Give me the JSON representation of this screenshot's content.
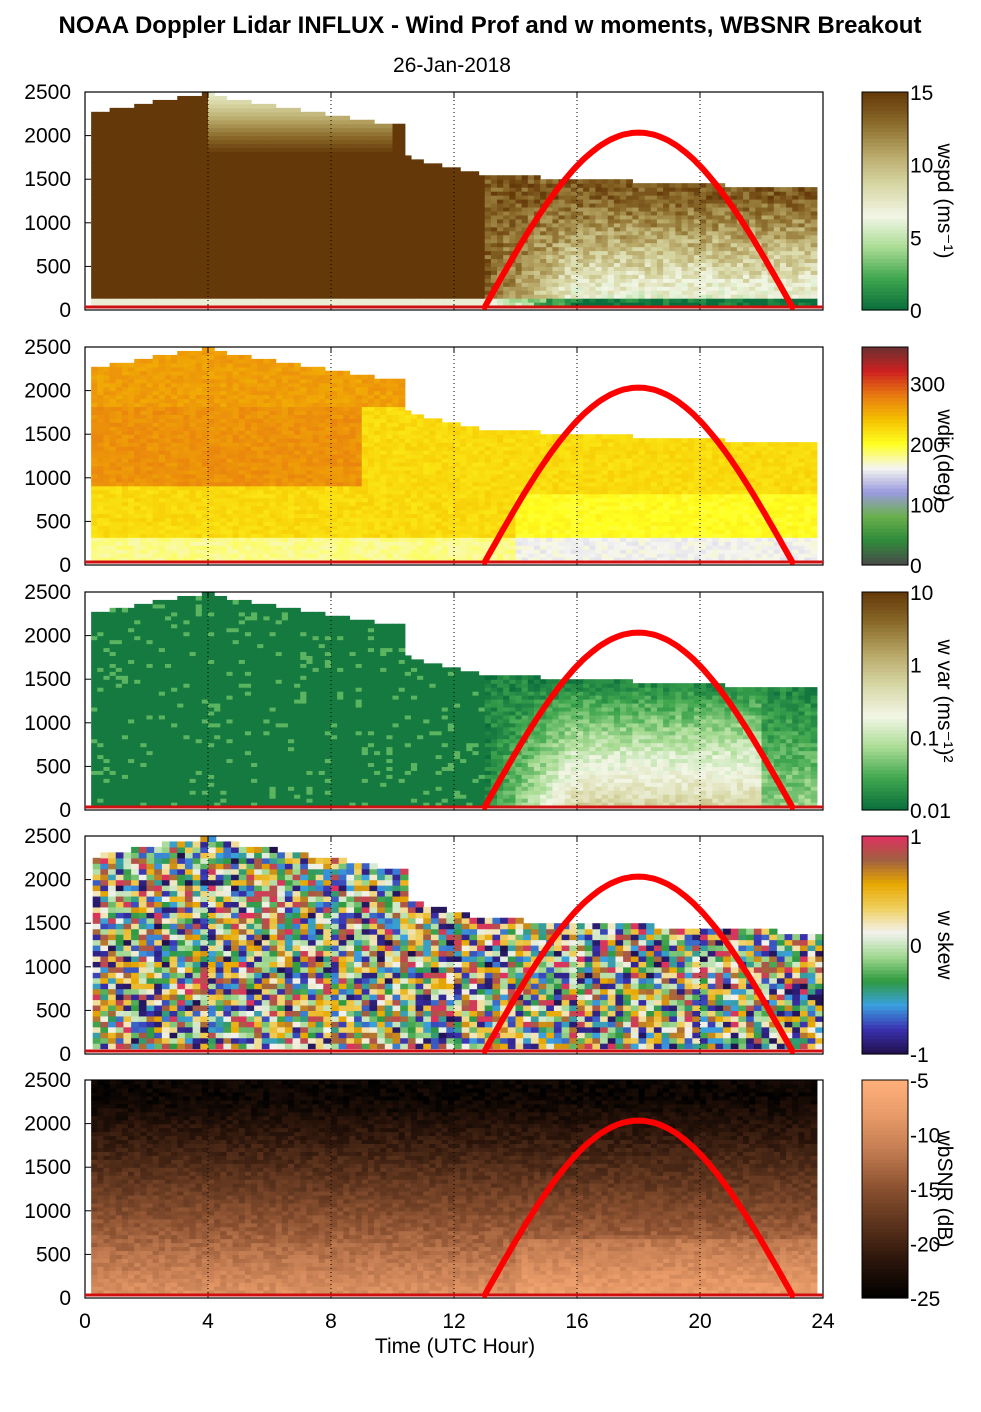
{
  "title": "NOAA Doppler Lidar INFLUX - Wind Prof and w moments, WBSNR Breakout",
  "date": "26-Jan-2018",
  "colors": {
    "sun_curve": "#ff0000",
    "baseline": "#d01010"
  },
  "chart_data": [
    {
      "type": "heatmap",
      "variable": "wspd",
      "colorbar_label": "wspd (ms⁻¹)",
      "colorbar_ticks": [
        "15",
        "10",
        "5",
        "0"
      ],
      "colorbar_range": [
        0,
        15
      ],
      "colormap": [
        "#0a6e3c",
        "#3fa64e",
        "#a9dc94",
        "#f2f6e6",
        "#d8d8a6",
        "#b8a868",
        "#8a6a2a",
        "#643808"
      ],
      "x": "Time (UTC Hour)",
      "xlim": [
        0,
        24
      ],
      "xticks": [
        "0",
        "4",
        "8",
        "12",
        "16",
        "20",
        "24"
      ],
      "ylim": [
        0,
        2500
      ],
      "yticks": [
        "2500",
        "2000",
        "1500",
        "1000",
        "500",
        "0"
      ],
      "sun_curve": {
        "start": 13,
        "peak": 18,
        "end": 23,
        "peak_value": 2000
      }
    },
    {
      "type": "heatmap",
      "variable": "wdir",
      "colorbar_label": "wdir (deg)",
      "colorbar_ticks": [
        "300",
        "200",
        "100",
        "0"
      ],
      "colorbar_range": [
        0,
        360
      ],
      "colormap": [
        "#4a4a4a",
        "#2f8a3a",
        "#6ab04c",
        "#9a9ae0",
        "#f6f6f0",
        "#ffff20",
        "#f5c000",
        "#e87a10",
        "#cc2020",
        "#6a3030"
      ],
      "x": "Time (UTC Hour)",
      "xlim": [
        0,
        24
      ],
      "ylim": [
        0,
        2500
      ],
      "yticks": [
        "2500",
        "2000",
        "1500",
        "1000",
        "500",
        "0"
      ],
      "sun_curve": {
        "start": 13,
        "peak": 18,
        "end": 23,
        "peak_value": 2000
      }
    },
    {
      "type": "heatmap",
      "variable": "w var",
      "colorbar_label": "w var (ms⁻¹)²",
      "colorbar_ticks": [
        "10",
        "1",
        "0.1",
        "0.01"
      ],
      "colorbar_range": [
        0.01,
        10
      ],
      "colorbar_scale": "log",
      "colormap": [
        "#0a6e3c",
        "#3fa64e",
        "#a9dc94",
        "#f2f6e6",
        "#d8d8a6",
        "#b8a868",
        "#8a6a2a",
        "#643808"
      ],
      "x": "Time (UTC Hour)",
      "xlim": [
        0,
        24
      ],
      "ylim": [
        0,
        2500
      ],
      "yticks": [
        "2500",
        "2000",
        "1500",
        "1000",
        "500",
        "0"
      ],
      "sun_curve": {
        "start": 13,
        "peak": 18,
        "end": 23,
        "peak_value": 2000
      }
    },
    {
      "type": "heatmap",
      "variable": "w skew",
      "colorbar_label": "w skew",
      "colorbar_ticks": [
        "1",
        "0",
        "-1"
      ],
      "colorbar_range": [
        -1,
        1
      ],
      "colormap": [
        "#20104a",
        "#3a30b0",
        "#3aa0e0",
        "#2f9a40",
        "#a0d890",
        "#f2f2ee",
        "#f0d060",
        "#e8a800",
        "#a06040",
        "#e03060"
      ],
      "x": "Time (UTC Hour)",
      "xlim": [
        0,
        24
      ],
      "ylim": [
        0,
        2500
      ],
      "yticks": [
        "2500",
        "2000",
        "1500",
        "1000",
        "500",
        "0"
      ],
      "sun_curve": {
        "start": 13,
        "peak": 18,
        "end": 23,
        "peak_value": 2000
      }
    },
    {
      "type": "heatmap",
      "variable": "wbSNR",
      "colorbar_label": "wbSNR (dB)",
      "colorbar_ticks": [
        "-5",
        "-10",
        "-15",
        "-20",
        "-25"
      ],
      "colorbar_range": [
        -25,
        -5
      ],
      "colormap": [
        "#000000",
        "#2a140a",
        "#5a321c",
        "#8a5030",
        "#c07a50",
        "#e89a68",
        "#ffb07a"
      ],
      "x": "Time (UTC Hour)",
      "xlim": [
        0,
        24
      ],
      "xlabel": "Time (UTC Hour)",
      "xticks": [
        "0",
        "4",
        "8",
        "12",
        "16",
        "20",
        "24"
      ],
      "ylim": [
        0,
        2500
      ],
      "yticks": [
        "2500",
        "2000",
        "1500",
        "1000",
        "500",
        "0"
      ],
      "sun_curve": {
        "start": 13,
        "peak": 18,
        "end": 23,
        "peak_value": 2000
      }
    }
  ]
}
